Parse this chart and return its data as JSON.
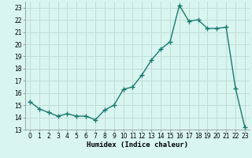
{
  "x": [
    0,
    1,
    2,
    3,
    4,
    5,
    6,
    7,
    8,
    9,
    10,
    11,
    12,
    13,
    14,
    15,
    16,
    17,
    18,
    19,
    20,
    21,
    22,
    23
  ],
  "y": [
    15.3,
    14.7,
    14.4,
    14.1,
    14.3,
    14.1,
    14.1,
    13.8,
    14.6,
    15.0,
    16.3,
    16.5,
    17.5,
    18.7,
    19.6,
    20.2,
    23.2,
    21.9,
    22.0,
    21.3,
    21.3,
    21.4,
    16.4,
    13.2
  ],
  "line_color": "#1a7a6e",
  "marker": "+",
  "marker_size": 4,
  "bg_color": "#d8f5f0",
  "grid_color": "#c0ddd8",
  "xlabel": "Humidex (Indice chaleur)",
  "xlim": [
    -0.5,
    23.5
  ],
  "ylim": [
    13,
    23.5
  ],
  "yticks": [
    13,
    14,
    15,
    16,
    17,
    18,
    19,
    20,
    21,
    22,
    23
  ],
  "xticks": [
    0,
    1,
    2,
    3,
    4,
    5,
    6,
    7,
    8,
    9,
    10,
    11,
    12,
    13,
    14,
    15,
    16,
    17,
    18,
    19,
    20,
    21,
    22,
    23
  ],
  "tick_fontsize": 5.5,
  "xlabel_fontsize": 6.5,
  "line_width": 1.0
}
